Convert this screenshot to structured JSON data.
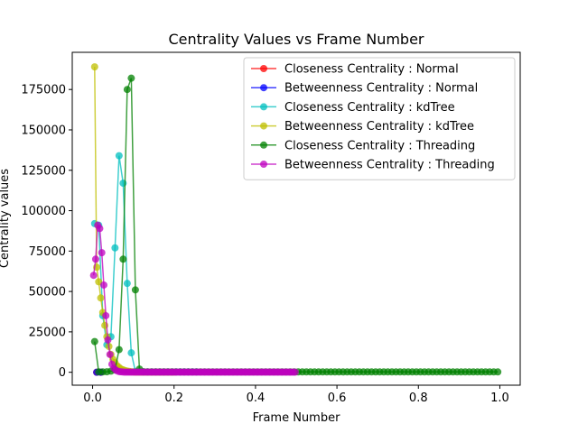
{
  "chart_data": {
    "type": "line",
    "title": "Centrality Values vs Frame Number",
    "xlabel": "Frame Number",
    "ylabel": "Centrality values",
    "xlim": [
      -0.05,
      1.05
    ],
    "ylim": [
      -8000,
      198000
    ],
    "xticks": [
      0.0,
      0.2,
      0.4,
      0.6,
      0.8,
      1.0
    ],
    "xtick_labels": [
      "0.0",
      "0.2",
      "0.4",
      "0.6",
      "0.8",
      "1.0"
    ],
    "yticks": [
      0,
      25000,
      50000,
      75000,
      100000,
      125000,
      150000,
      175000
    ],
    "ytick_labels": [
      "0",
      "25000",
      "50000",
      "75000",
      "100000",
      "125000",
      "150000",
      "175000"
    ],
    "legend_position": "top-right",
    "grid": false,
    "series": [
      {
        "name": "Closeness Centrality : Normal",
        "color": "#ff0000",
        "x": [
          0.01,
          0.02
        ],
        "y": [
          0,
          0
        ]
      },
      {
        "name": "Betweenness Centrality : Normal",
        "color": "#0000ff",
        "x": [
          0.01,
          0.02
        ],
        "y": [
          0,
          0
        ]
      },
      {
        "name": "Closeness Centrality : kdTree",
        "color": "#00bfbf",
        "x": [
          0.005,
          0.015,
          0.025,
          0.035,
          0.045,
          0.055,
          0.065,
          0.075,
          0.085,
          0.095,
          0.105,
          0.115,
          0.125,
          0.135,
          0.145,
          0.155,
          0.165,
          0.175,
          0.185,
          0.195,
          0.205,
          0.215,
          0.225,
          0.235,
          0.245,
          0.255
        ],
        "y": [
          92000,
          91000,
          35000,
          17000,
          22000,
          77000,
          134000,
          117000,
          55000,
          12000,
          500,
          300,
          200,
          200,
          200,
          200,
          200,
          200,
          200,
          200,
          200,
          200,
          200,
          200,
          200,
          200
        ]
      },
      {
        "name": "Betweenness Centrality : kdTree",
        "color": "#bfbf00",
        "x": [
          0.005,
          0.01,
          0.015,
          0.02,
          0.025,
          0.03,
          0.035,
          0.04,
          0.045,
          0.05,
          0.055,
          0.06,
          0.065,
          0.07,
          0.075,
          0.08,
          0.085,
          0.09,
          0.095,
          0.1,
          0.105,
          0.11,
          0.115,
          0.12,
          0.125,
          0.13,
          0.135,
          0.14,
          0.145,
          0.15,
          0.155,
          0.16,
          0.165,
          0.17,
          0.175,
          0.18,
          0.185,
          0.19,
          0.195,
          0.2
        ],
        "y": [
          189000,
          65000,
          56000,
          46000,
          37000,
          29000,
          22000,
          16000,
          11000,
          8000,
          6000,
          4000,
          3000,
          2000,
          1500,
          1000,
          700,
          500,
          300,
          200,
          100,
          100,
          100,
          100,
          100,
          100,
          100,
          100,
          100,
          100,
          100,
          100,
          100,
          100,
          100,
          100,
          100,
          100,
          100,
          100
        ]
      },
      {
        "name": "Closeness Centrality : Threading",
        "color": "#008000",
        "x": [
          0.005,
          0.015,
          0.025,
          0.035,
          0.045,
          0.055,
          0.065,
          0.075,
          0.085,
          0.095,
          0.105,
          0.115,
          0.125,
          0.135,
          0.145,
          0.155,
          0.165,
          0.175,
          0.185,
          0.195,
          0.205,
          0.215,
          0.225,
          0.235,
          0.245,
          0.255,
          0.265,
          0.275,
          0.285,
          0.295,
          0.305,
          0.315,
          0.325,
          0.335,
          0.345,
          0.355,
          0.365,
          0.375,
          0.385,
          0.395,
          0.405,
          0.415,
          0.425,
          0.435,
          0.445,
          0.455,
          0.465,
          0.475,
          0.485,
          0.495,
          0.505,
          0.515,
          0.525,
          0.535,
          0.545,
          0.555,
          0.565,
          0.575,
          0.585,
          0.595,
          0.605,
          0.615,
          0.625,
          0.635,
          0.645,
          0.655,
          0.665,
          0.675,
          0.685,
          0.695,
          0.705,
          0.715,
          0.725,
          0.735,
          0.745,
          0.755,
          0.765,
          0.775,
          0.785,
          0.795,
          0.805,
          0.815,
          0.825,
          0.835,
          0.845,
          0.855,
          0.865,
          0.875,
          0.885,
          0.895,
          0.905,
          0.915,
          0.925,
          0.935,
          0.945,
          0.955,
          0.965,
          0.975,
          0.985,
          0.995
        ],
        "y": [
          19000,
          200,
          200,
          300,
          700,
          1500,
          14000,
          70000,
          175000,
          182000,
          51000,
          2000,
          300,
          200,
          200,
          200,
          200,
          200,
          200,
          200,
          200,
          200,
          200,
          200,
          200,
          200,
          200,
          200,
          200,
          200,
          200,
          200,
          200,
          200,
          200,
          200,
          200,
          200,
          200,
          200,
          200,
          200,
          200,
          200,
          200,
          200,
          200,
          200,
          200,
          200,
          200,
          200,
          200,
          200,
          200,
          200,
          200,
          200,
          200,
          200,
          200,
          200,
          200,
          200,
          200,
          200,
          200,
          200,
          200,
          200,
          200,
          200,
          200,
          200,
          200,
          200,
          200,
          200,
          200,
          200,
          200,
          200,
          200,
          200,
          200,
          200,
          200,
          200,
          200,
          200,
          200,
          200,
          200,
          200,
          200,
          200,
          200,
          200,
          200,
          200
        ]
      },
      {
        "name": "Betweenness Centrality : Threading",
        "color": "#bf00bf",
        "x": [
          0.0025,
          0.0075,
          0.0125,
          0.0175,
          0.0225,
          0.0275,
          0.0325,
          0.0375,
          0.0425,
          0.0475,
          0.0525,
          0.0575,
          0.0625,
          0.0675,
          0.0725,
          0.0775,
          0.0825,
          0.0875,
          0.0925,
          0.0975,
          0.1025,
          0.1075,
          0.1125,
          0.1175,
          0.1225,
          0.1275,
          0.1325,
          0.1375,
          0.1425,
          0.1475,
          0.1525,
          0.1575,
          0.1625,
          0.1675,
          0.1725,
          0.1775,
          0.1825,
          0.1875,
          0.1925,
          0.1975,
          0.2025,
          0.2075,
          0.2125,
          0.2175,
          0.2225,
          0.2275,
          0.2325,
          0.2375,
          0.2425,
          0.2475,
          0.2525,
          0.2575,
          0.2625,
          0.2675,
          0.2725,
          0.2775,
          0.2825,
          0.2875,
          0.2925,
          0.2975,
          0.3025,
          0.3075,
          0.3125,
          0.3175,
          0.3225,
          0.3275,
          0.3325,
          0.3375,
          0.3425,
          0.3475,
          0.3525,
          0.3575,
          0.3625,
          0.3675,
          0.3725,
          0.3775,
          0.3825,
          0.3875,
          0.3925,
          0.3975,
          0.4025,
          0.4075,
          0.4125,
          0.4175,
          0.4225,
          0.4275,
          0.4325,
          0.4375,
          0.4425,
          0.4475,
          0.4525,
          0.4575,
          0.4625,
          0.4675,
          0.4725,
          0.4775,
          0.4825,
          0.4875,
          0.4925,
          0.4975
        ],
        "y": [
          60000,
          70000,
          91000,
          89000,
          74000,
          54000,
          35000,
          20000,
          11000,
          5000,
          2500,
          1200,
          600,
          300,
          200,
          100,
          100,
          100,
          100,
          100,
          100,
          100,
          100,
          100,
          100,
          100,
          100,
          100,
          100,
          100,
          100,
          100,
          100,
          100,
          100,
          100,
          100,
          100,
          100,
          100,
          100,
          100,
          100,
          100,
          100,
          100,
          100,
          100,
          100,
          100,
          100,
          100,
          100,
          100,
          100,
          100,
          100,
          100,
          100,
          100,
          100,
          100,
          100,
          100,
          100,
          100,
          100,
          100,
          100,
          100,
          100,
          100,
          100,
          100,
          100,
          100,
          100,
          100,
          100,
          100,
          100,
          100,
          100,
          100,
          100,
          100,
          100,
          100,
          100,
          100,
          100,
          100,
          100,
          100,
          100,
          100,
          100,
          100,
          100,
          100
        ]
      }
    ]
  }
}
